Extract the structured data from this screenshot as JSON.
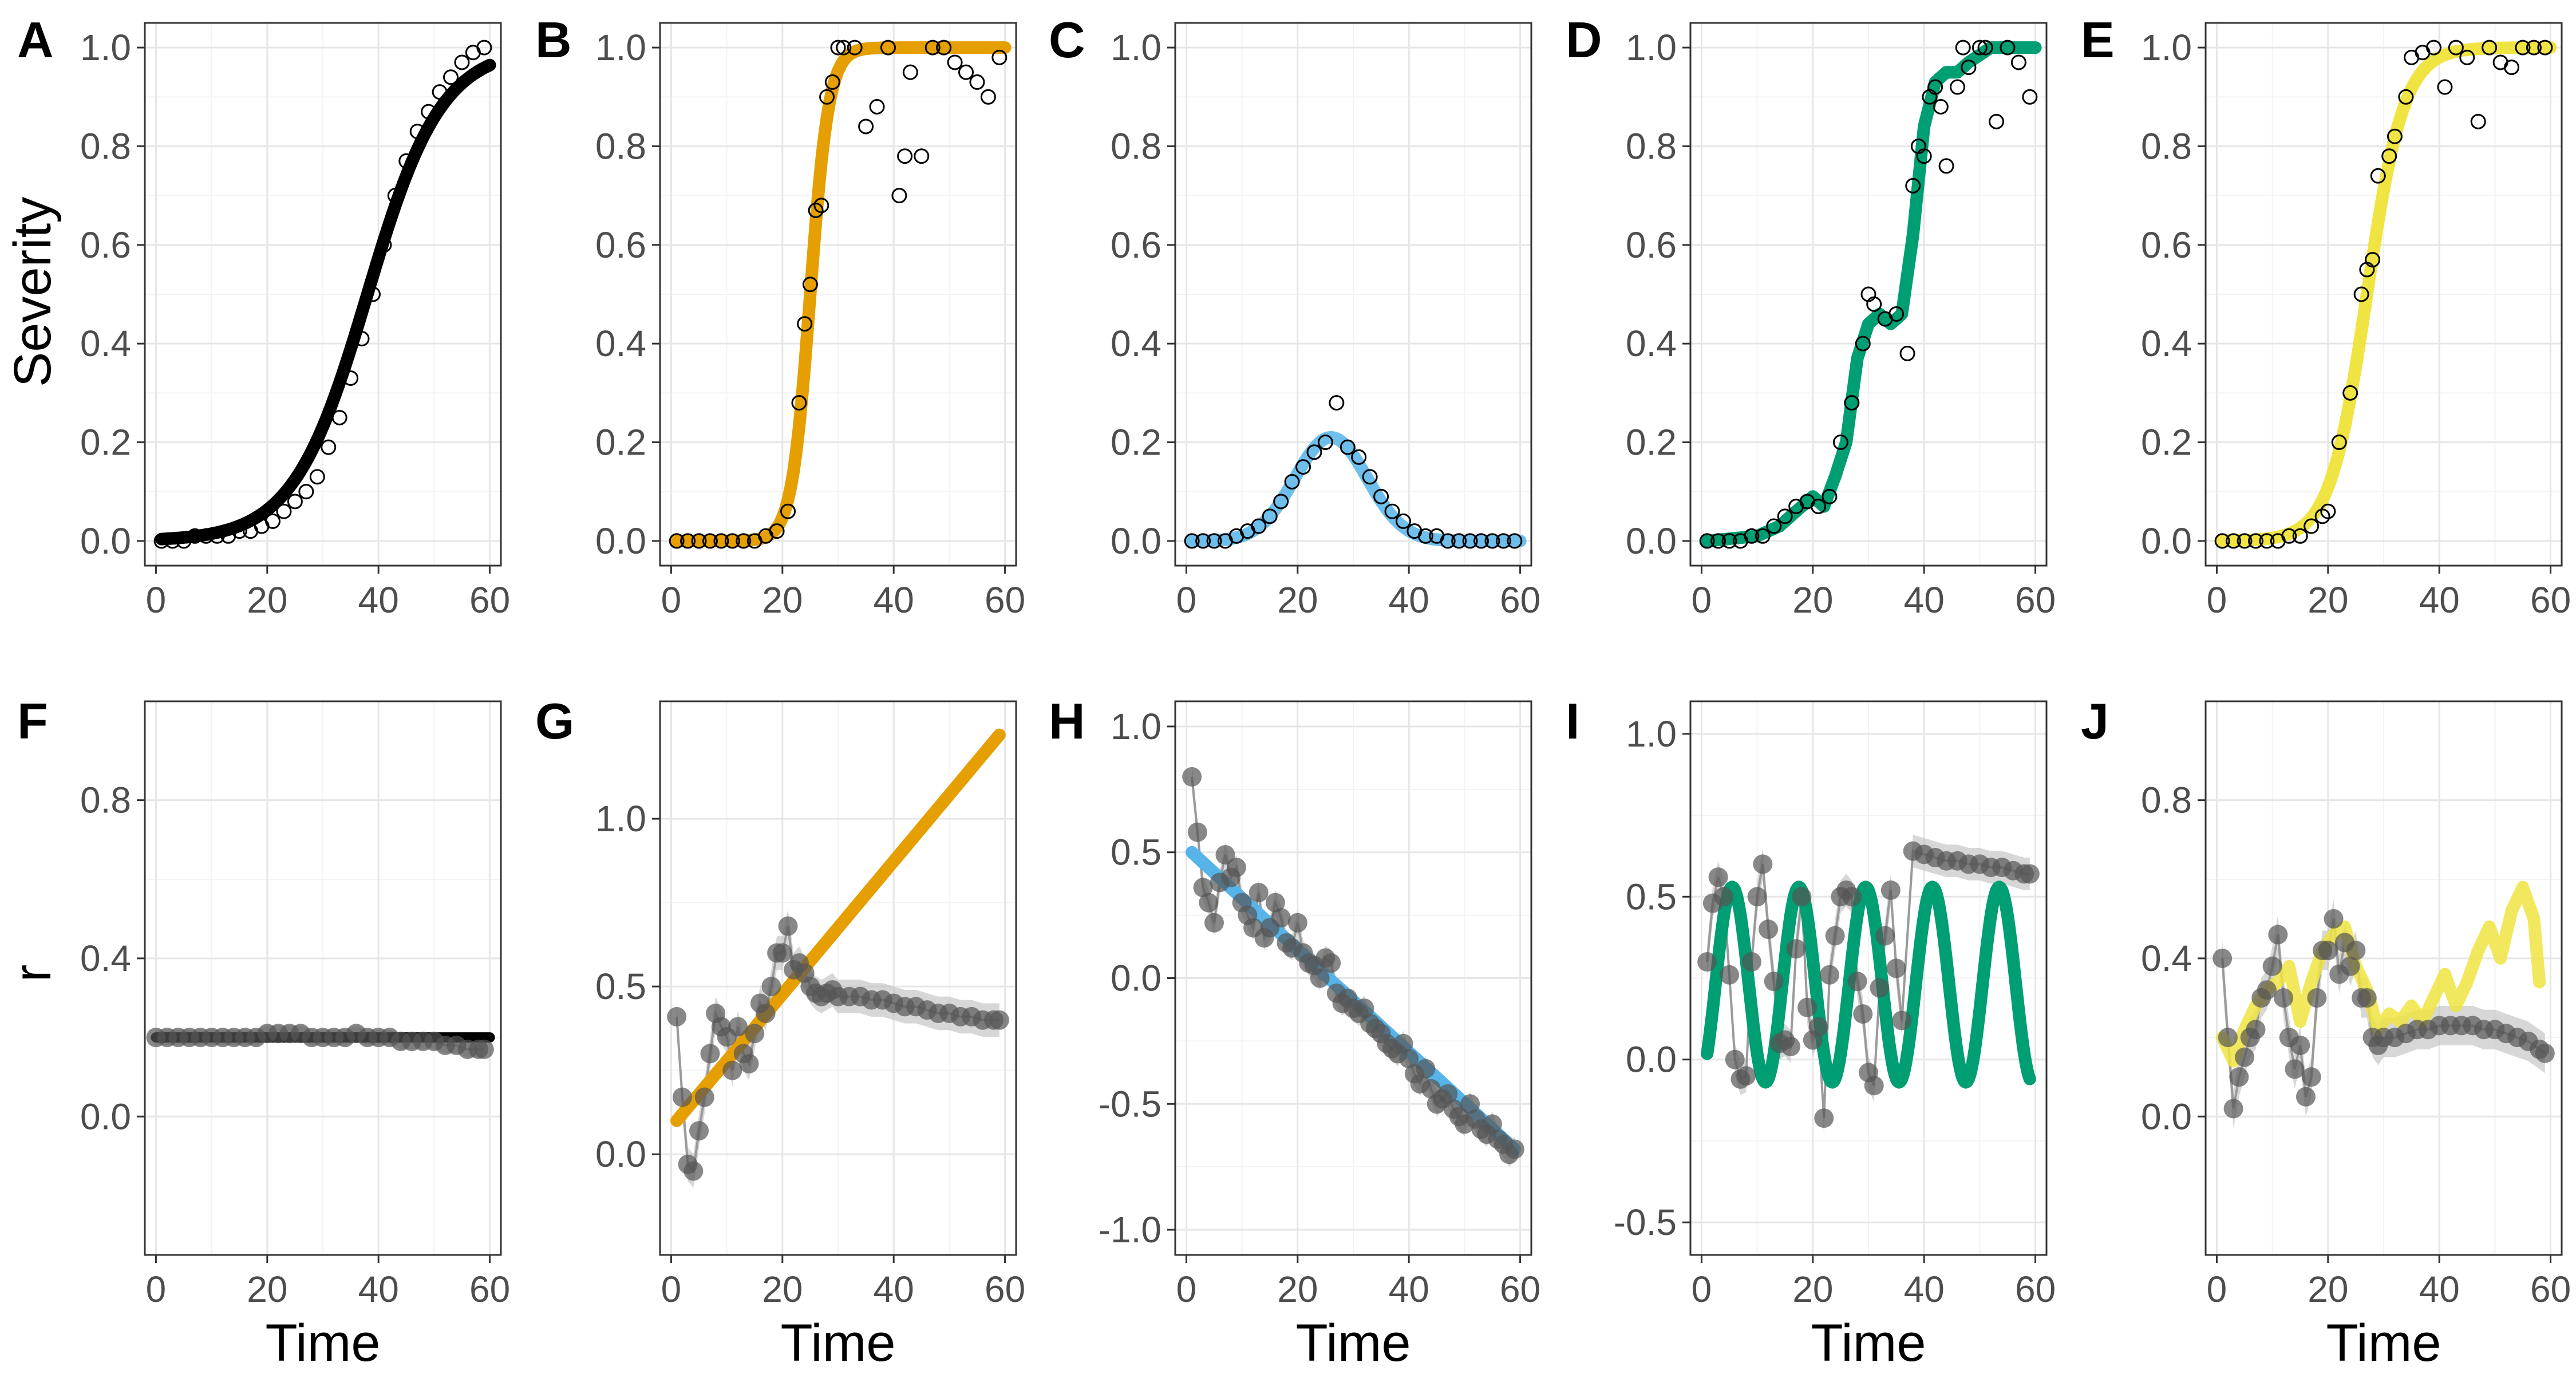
{
  "figure": {
    "top_ylabel": "Severity",
    "bottom_ylabel": "r",
    "xlabel": "Time",
    "colors": {
      "A": "#000000",
      "B": "#E69F00",
      "C": "#56B4E9",
      "D": "#009E73",
      "E": "#F0E442",
      "points_dark": "#555555",
      "ribbon": "#bdbdbd"
    }
  },
  "chart_data": [
    {
      "panel": "A",
      "type": "scatter",
      "xlabel": "",
      "ylabel": "Severity",
      "xlim": [
        -2,
        62
      ],
      "ylim": [
        -0.05,
        1.05
      ],
      "xticks": [
        "0",
        "20",
        "40",
        "60"
      ],
      "yticks": [
        "0.0",
        "0.2",
        "0.4",
        "0.6",
        "0.8",
        "1.0"
      ],
      "curve": {
        "model": "logistic",
        "y0": 0.003,
        "rate": 0.15,
        "t_half": 38
      },
      "points_x": [
        1,
        3,
        5,
        7,
        9,
        11,
        13,
        15,
        17,
        19,
        21,
        23,
        25,
        27,
        29,
        31,
        33,
        35,
        37,
        39,
        41,
        43,
        45,
        47,
        49,
        51,
        53,
        55,
        57,
        59
      ],
      "points_y": [
        0.0,
        0.0,
        0.0,
        0.01,
        0.01,
        0.01,
        0.01,
        0.02,
        0.02,
        0.03,
        0.04,
        0.06,
        0.08,
        0.1,
        0.13,
        0.19,
        0.25,
        0.33,
        0.41,
        0.5,
        0.6,
        0.7,
        0.77,
        0.83,
        0.87,
        0.91,
        0.94,
        0.97,
        0.99,
        1.0
      ]
    },
    {
      "panel": "B",
      "type": "scatter",
      "xlabel": "",
      "ylabel": "",
      "xlim": [
        -2,
        62
      ],
      "ylim": [
        -0.05,
        1.05
      ],
      "xticks": [
        "0",
        "20",
        "40",
        "60"
      ],
      "yticks": [
        "0.0",
        "0.2",
        "0.4",
        "0.6",
        "0.8",
        "1.0"
      ],
      "curve": {
        "model": "logistic",
        "y0": 0.001,
        "rate": 0.6,
        "t_half": 25
      },
      "points_x": [
        1,
        3,
        5,
        7,
        9,
        11,
        13,
        15,
        17,
        19,
        21,
        23,
        24,
        25,
        26,
        27,
        28,
        29,
        30,
        31,
        33,
        35,
        37,
        39,
        41,
        42,
        43,
        45,
        47,
        49,
        51,
        53,
        55,
        57,
        59
      ],
      "points_y": [
        0.0,
        0.0,
        0.0,
        0.0,
        0.0,
        0.0,
        0.0,
        0.0,
        0.01,
        0.02,
        0.06,
        0.28,
        0.44,
        0.52,
        0.67,
        0.68,
        0.9,
        0.93,
        1.0,
        1.0,
        1.0,
        0.84,
        0.88,
        1.0,
        0.7,
        0.78,
        0.95,
        0.78,
        1.0,
        1.0,
        0.97,
        0.95,
        0.93,
        0.9,
        0.98
      ]
    },
    {
      "panel": "C",
      "type": "scatter",
      "xlabel": "",
      "ylabel": "",
      "xlim": [
        -2,
        62
      ],
      "ylim": [
        -0.05,
        1.05
      ],
      "xticks": [
        "0",
        "20",
        "40",
        "60"
      ],
      "yticks": [
        "0.0",
        "0.2",
        "0.4",
        "0.6",
        "0.8",
        "1.0"
      ],
      "curve": {
        "model": "gaussian",
        "peak": 0.21,
        "center": 26,
        "width": 6.5
      },
      "points_x": [
        1,
        3,
        5,
        7,
        9,
        11,
        13,
        15,
        17,
        19,
        21,
        23,
        25,
        27,
        29,
        31,
        33,
        35,
        37,
        39,
        41,
        43,
        45,
        47,
        49,
        51,
        53,
        55,
        57,
        59
      ],
      "points_y": [
        0.0,
        0.0,
        0.0,
        0.0,
        0.01,
        0.02,
        0.03,
        0.05,
        0.08,
        0.12,
        0.15,
        0.18,
        0.2,
        0.28,
        0.19,
        0.17,
        0.13,
        0.09,
        0.06,
        0.04,
        0.02,
        0.01,
        0.01,
        0.0,
        0.0,
        0.0,
        0.0,
        0.0,
        0.0,
        0.0
      ]
    },
    {
      "panel": "D",
      "type": "scatter",
      "xlabel": "",
      "ylabel": "",
      "xlim": [
        -2,
        62
      ],
      "ylim": [
        -0.05,
        1.05
      ],
      "xticks": [
        "0",
        "20",
        "40",
        "60"
      ],
      "yticks": [
        "0.0",
        "0.2",
        "0.4",
        "0.6",
        "0.8",
        "1.0"
      ],
      "curve": {
        "model": "piecewise",
        "x": [
          1,
          10,
          14,
          17,
          20,
          22,
          24,
          26,
          28,
          30,
          32,
          34,
          36,
          38,
          40,
          42,
          44,
          46,
          48,
          52,
          56,
          60
        ],
        "y": [
          0.0,
          0.01,
          0.03,
          0.06,
          0.09,
          0.07,
          0.13,
          0.2,
          0.37,
          0.44,
          0.46,
          0.44,
          0.46,
          0.62,
          0.84,
          0.93,
          0.95,
          0.95,
          0.97,
          1.0,
          1.0,
          1.0
        ]
      },
      "points_x": [
        1,
        3,
        5,
        7,
        9,
        11,
        13,
        15,
        17,
        19,
        21,
        23,
        25,
        27,
        29,
        30,
        31,
        33,
        35,
        37,
        38,
        39,
        40,
        41,
        42,
        43,
        44,
        46,
        47,
        48,
        50,
        51,
        53,
        55,
        57,
        59
      ],
      "points_y": [
        0.0,
        0.0,
        0.0,
        0.0,
        0.01,
        0.01,
        0.03,
        0.05,
        0.07,
        0.08,
        0.07,
        0.09,
        0.2,
        0.28,
        0.4,
        0.5,
        0.48,
        0.45,
        0.46,
        0.38,
        0.72,
        0.8,
        0.78,
        0.9,
        0.92,
        0.88,
        0.76,
        0.92,
        1.0,
        0.96,
        1.0,
        1.0,
        0.85,
        1.0,
        0.97,
        0.9
      ]
    },
    {
      "panel": "E",
      "type": "scatter",
      "xlabel": "",
      "ylabel": "",
      "xlim": [
        -2,
        62
      ],
      "ylim": [
        -0.05,
        1.05
      ],
      "xticks": [
        "0",
        "20",
        "40",
        "60"
      ],
      "yticks": [
        "0.0",
        "0.2",
        "0.4",
        "0.6",
        "0.8",
        "1.0"
      ],
      "curve": {
        "model": "logistic",
        "y0": 0.002,
        "rate": 0.3,
        "t_half": 27
      },
      "points_x": [
        1,
        3,
        5,
        7,
        9,
        11,
        13,
        15,
        17,
        19,
        20,
        22,
        24,
        26,
        27,
        28,
        29,
        31,
        32,
        34,
        35,
        37,
        39,
        41,
        43,
        45,
        47,
        49,
        51,
        53,
        55,
        57,
        59
      ],
      "points_y": [
        0.0,
        0.0,
        0.0,
        0.0,
        0.0,
        0.0,
        0.01,
        0.01,
        0.03,
        0.05,
        0.06,
        0.2,
        0.3,
        0.5,
        0.55,
        0.57,
        0.74,
        0.78,
        0.82,
        0.9,
        0.98,
        0.99,
        1.0,
        0.92,
        1.0,
        0.98,
        0.85,
        1.0,
        0.97,
        0.96,
        1.0,
        1.0,
        1.0
      ]
    },
    {
      "panel": "F",
      "type": "line",
      "xlabel": "Time",
      "ylabel": "r",
      "xlim": [
        -2,
        62
      ],
      "ylim": [
        -0.35,
        1.05
      ],
      "xticks": [
        "0",
        "20",
        "40",
        "60"
      ],
      "yticks": [
        "0.0",
        "0.4",
        "0.8"
      ],
      "fit_line": {
        "x": [
          0,
          60
        ],
        "y": [
          0.2,
          0.2
        ]
      },
      "points_x": [
        0,
        2,
        4,
        6,
        8,
        10,
        12,
        14,
        16,
        18,
        20,
        22,
        24,
        26,
        28,
        30,
        32,
        34,
        36,
        38,
        40,
        42,
        44,
        46,
        48,
        50,
        52,
        54,
        56,
        58,
        59
      ],
      "points_y": [
        0.2,
        0.2,
        0.2,
        0.2,
        0.2,
        0.2,
        0.2,
        0.2,
        0.2,
        0.2,
        0.21,
        0.21,
        0.21,
        0.21,
        0.2,
        0.2,
        0.2,
        0.2,
        0.21,
        0.2,
        0.2,
        0.2,
        0.19,
        0.19,
        0.19,
        0.19,
        0.18,
        0.18,
        0.17,
        0.17,
        0.17
      ]
    },
    {
      "panel": "G",
      "type": "line",
      "xlabel": "Time",
      "ylabel": "",
      "xlim": [
        -2,
        62
      ],
      "ylim": [
        -0.3,
        1.35
      ],
      "xticks": [
        "0",
        "20",
        "40",
        "60"
      ],
      "yticks": [
        "0.0",
        "0.5",
        "1.0"
      ],
      "fit_line": {
        "x": [
          1,
          59
        ],
        "y": [
          0.1,
          1.25
        ]
      },
      "points_x": [
        1,
        2,
        3,
        4,
        5,
        6,
        7,
        8,
        9,
        10,
        11,
        12,
        13,
        14,
        15,
        16,
        17,
        18,
        19,
        20,
        21,
        22,
        23,
        24,
        25,
        26,
        27,
        28,
        29,
        30,
        32,
        34,
        36,
        38,
        40,
        42,
        44,
        46,
        48,
        50,
        52,
        54,
        56,
        58,
        59
      ],
      "points_y": [
        0.41,
        0.17,
        -0.03,
        -0.05,
        0.07,
        0.17,
        0.3,
        0.42,
        0.38,
        0.35,
        0.25,
        0.38,
        0.3,
        0.27,
        0.36,
        0.45,
        0.42,
        0.5,
        0.6,
        0.6,
        0.68,
        0.55,
        0.57,
        0.54,
        0.5,
        0.48,
        0.47,
        0.48,
        0.49,
        0.47,
        0.47,
        0.47,
        0.46,
        0.46,
        0.45,
        0.44,
        0.44,
        0.43,
        0.42,
        0.42,
        0.41,
        0.41,
        0.4,
        0.4,
        0.4
      ]
    },
    {
      "panel": "H",
      "type": "line",
      "xlabel": "Time",
      "ylabel": "",
      "xlim": [
        -2,
        62
      ],
      "ylim": [
        -1.1,
        1.1
      ],
      "xticks": [
        "0",
        "20",
        "40",
        "60"
      ],
      "yticks": [
        "-1.0",
        "-0.5",
        "0.0",
        "0.5",
        "1.0"
      ],
      "fit_line": {
        "x": [
          1,
          59
        ],
        "y": [
          0.5,
          -0.68
        ]
      },
      "points_x": [
        1,
        2,
        3,
        4,
        5,
        6,
        7,
        8,
        9,
        10,
        11,
        12,
        13,
        14,
        15,
        16,
        17,
        18,
        19,
        20,
        21,
        22,
        23,
        24,
        25,
        26,
        27,
        28,
        29,
        30,
        31,
        32,
        33,
        34,
        35,
        36,
        37,
        38,
        39,
        40,
        41,
        42,
        43,
        44,
        45,
        46,
        47,
        48,
        49,
        50,
        51,
        52,
        53,
        54,
        55,
        56,
        57,
        58,
        59
      ],
      "points_y": [
        0.8,
        0.58,
        0.36,
        0.3,
        0.22,
        0.38,
        0.49,
        0.4,
        0.44,
        0.3,
        0.25,
        0.2,
        0.34,
        0.16,
        0.2,
        0.3,
        0.24,
        0.14,
        0.12,
        0.22,
        0.1,
        0.06,
        0.05,
        0.0,
        0.08,
        0.06,
        -0.06,
        -0.1,
        -0.08,
        -0.12,
        -0.14,
        -0.12,
        -0.18,
        -0.2,
        -0.22,
        -0.26,
        -0.28,
        -0.3,
        -0.26,
        -0.32,
        -0.38,
        -0.42,
        -0.36,
        -0.44,
        -0.5,
        -0.48,
        -0.46,
        -0.52,
        -0.55,
        -0.58,
        -0.5,
        -0.56,
        -0.6,
        -0.62,
        -0.58,
        -0.64,
        -0.66,
        -0.7,
        -0.68
      ]
    },
    {
      "panel": "I",
      "type": "line",
      "xlabel": "Time",
      "ylabel": "",
      "xlim": [
        -2,
        62
      ],
      "ylim": [
        -0.6,
        1.1
      ],
      "xticks": [
        "0",
        "20",
        "40",
        "60"
      ],
      "yticks": [
        "-0.5",
        "0.0",
        "0.5",
        "1.0"
      ],
      "fit_line": {
        "model": "sine",
        "mean": 0.23,
        "amplitude": 0.3,
        "period": 12,
        "phase_x": 2.5,
        "x_from": 1,
        "x_to": 59
      },
      "points_x": [
        1,
        2,
        3,
        4,
        5,
        6,
        7,
        8,
        9,
        10,
        11,
        12,
        13,
        14,
        15,
        16,
        17,
        18,
        19,
        20,
        21,
        22,
        23,
        24,
        25,
        26,
        27,
        28,
        29,
        30,
        31,
        32,
        33,
        34,
        35,
        36,
        38,
        40,
        42,
        44,
        46,
        48,
        50,
        52,
        54,
        56,
        58,
        59
      ],
      "points_y": [
        0.3,
        0.48,
        0.56,
        0.5,
        0.26,
        0.0,
        -0.06,
        -0.05,
        0.3,
        0.5,
        0.6,
        0.4,
        0.24,
        0.05,
        0.06,
        0.04,
        0.34,
        0.5,
        0.16,
        0.06,
        0.1,
        -0.18,
        0.26,
        0.38,
        0.5,
        0.52,
        0.5,
        0.24,
        0.14,
        -0.04,
        -0.08,
        0.22,
        0.38,
        0.52,
        0.28,
        0.12,
        0.64,
        0.63,
        0.62,
        0.61,
        0.61,
        0.6,
        0.6,
        0.59,
        0.59,
        0.58,
        0.57,
        0.57
      ]
    },
    {
      "panel": "J",
      "type": "line",
      "xlabel": "Time",
      "ylabel": "",
      "xlim": [
        -2,
        62
      ],
      "ylim": [
        -0.35,
        1.05
      ],
      "xticks": [
        "0",
        "20",
        "40",
        "60"
      ],
      "yticks": [
        "0.0",
        "0.4",
        "0.8"
      ],
      "fit_line": {
        "x": [
          1,
          3,
          5,
          7,
          9,
          11,
          13,
          15,
          17,
          19,
          21,
          23,
          25,
          27,
          29,
          31,
          33,
          35,
          37,
          39,
          41,
          43,
          45,
          47,
          49,
          51,
          53,
          55,
          57,
          58
        ],
        "y": [
          0.2,
          0.14,
          0.22,
          0.28,
          0.32,
          0.34,
          0.38,
          0.24,
          0.34,
          0.42,
          0.46,
          0.48,
          0.38,
          0.32,
          0.22,
          0.26,
          0.24,
          0.28,
          0.24,
          0.3,
          0.36,
          0.28,
          0.34,
          0.42,
          0.48,
          0.4,
          0.52,
          0.58,
          0.5,
          0.34
        ]
      },
      "points_x": [
        1,
        2,
        3,
        4,
        5,
        6,
        7,
        8,
        9,
        10,
        11,
        12,
        13,
        14,
        15,
        16,
        17,
        18,
        19,
        20,
        21,
        22,
        23,
        24,
        25,
        26,
        27,
        28,
        29,
        30,
        32,
        34,
        36,
        38,
        40,
        42,
        44,
        46,
        48,
        50,
        52,
        54,
        56,
        58,
        59
      ],
      "points_y": [
        0.4,
        0.2,
        0.02,
        0.1,
        0.15,
        0.2,
        0.22,
        0.3,
        0.32,
        0.38,
        0.46,
        0.3,
        0.2,
        0.12,
        0.18,
        0.05,
        0.1,
        0.3,
        0.42,
        0.42,
        0.5,
        0.36,
        0.44,
        0.38,
        0.42,
        0.3,
        0.3,
        0.2,
        0.18,
        0.2,
        0.2,
        0.21,
        0.22,
        0.22,
        0.23,
        0.23,
        0.23,
        0.23,
        0.22,
        0.22,
        0.21,
        0.2,
        0.19,
        0.17,
        0.16
      ]
    }
  ]
}
